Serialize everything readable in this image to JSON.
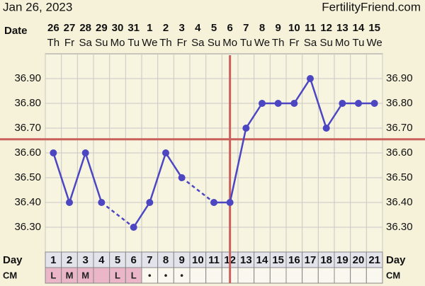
{
  "chart_data": {
    "type": "line",
    "title": "Jan 26, 2023",
    "source": "FertilityFriend.com",
    "date_label": "Date",
    "day_label": "Day",
    "cm_label": "CM",
    "categories": [
      "26",
      "27",
      "28",
      "29",
      "30",
      "31",
      "1",
      "2",
      "3",
      "4",
      "5",
      "6",
      "7",
      "8",
      "9",
      "10",
      "11",
      "12",
      "13",
      "14",
      "15"
    ],
    "weekdays": [
      "Th",
      "Fr",
      "Sa",
      "Su",
      "Mo",
      "Tu",
      "We",
      "Th",
      "Fr",
      "Sa",
      "Su",
      "Mo",
      "Tu",
      "We",
      "Th",
      "Fr",
      "Sa",
      "Su",
      "Mo",
      "Tu",
      "We"
    ],
    "days": [
      1,
      2,
      3,
      4,
      5,
      6,
      7,
      8,
      9,
      10,
      11,
      12,
      13,
      14,
      15,
      16,
      17,
      18,
      19,
      20,
      21
    ],
    "cm": [
      "L",
      "M",
      "M",
      null,
      "L",
      "L",
      "•",
      "•",
      "•",
      null,
      null,
      null,
      null,
      null,
      null,
      null,
      null,
      null,
      null,
      null,
      null
    ],
    "cm_fill": [
      "#eab6c8",
      "#eab6c8",
      "#eab6c8",
      "#eab6c8",
      "#eab6c8",
      "#eab6c8",
      "#faf8ee",
      "#faf8ee",
      "#faf8ee",
      "#faf8ee",
      "#faf8ee",
      "#faf8ee",
      "#faf8ee",
      "#faf8ee",
      "#faf8ee",
      "#faf8ee",
      "#faf8ee",
      "#faf8ee",
      "#faf8ee",
      "#faf8ee",
      "#faf8ee"
    ],
    "values": [
      36.6,
      36.4,
      36.6,
      36.4,
      null,
      36.3,
      36.4,
      36.6,
      36.5,
      null,
      36.4,
      36.4,
      36.7,
      36.8,
      36.8,
      36.8,
      36.9,
      36.7,
      36.8,
      36.8,
      36.8
    ],
    "color": "#4c46c2",
    "coverline": {
      "value": 36.655,
      "color": "#c9605c"
    },
    "ovulation_day": 12,
    "ovulation_color": "#c9605c",
    "ylim": [
      36.2,
      37.0
    ],
    "yticks": [
      {
        "value": 36.3,
        "label": "36.30"
      },
      {
        "value": 36.4,
        "label": "36.40"
      },
      {
        "value": 36.5,
        "label": "36.50"
      },
      {
        "value": 36.6,
        "label": "36.60"
      },
      {
        "value": 36.7,
        "label": "36.70"
      },
      {
        "value": 36.8,
        "label": "36.80"
      },
      {
        "value": 36.9,
        "label": "36.90"
      }
    ],
    "grid": true
  }
}
